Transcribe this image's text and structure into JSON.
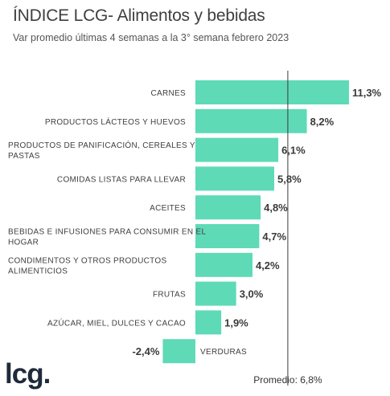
{
  "header": {
    "title": "ÍNDICE LCG- Alimentos y bebidas",
    "subtitle": "Var promedio últimas 4 semanas a la 3° semana febrero 2023"
  },
  "logo": {
    "text": "lcg."
  },
  "chart_data": {
    "type": "bar",
    "orientation": "horizontal",
    "categories": [
      "CARNES",
      "PRODUCTOS LÁCTEOS Y HUEVOS",
      "PRODUCTOS DE PANIFICACIÓN, CEREALES Y PASTAS",
      "COMIDAS LISTAS PARA LLEVAR",
      "ACEITES",
      "BEBIDAS E INFUSIONES PARA CONSUMIR EN EL HOGAR",
      "CONDIMENTOS Y OTROS PRODUCTOS ALIMENTICIOS",
      "FRUTAS",
      "AZÚCAR, MIEL, DULCES Y CACAO",
      "VERDURAS"
    ],
    "category_lines": [
      [
        "CARNES"
      ],
      [
        "PRODUCTOS LÁCTEOS Y HUEVOS"
      ],
      [
        "PRODUCTOS DE PANIFICACIÓN, CEREALES Y",
        "PASTAS"
      ],
      [
        "COMIDAS LISTAS PARA LLEVAR"
      ],
      [
        "ACEITES"
      ],
      [
        "BEBIDAS E INFUSIONES PARA CONSUMIR EN EL",
        "HOGAR"
      ],
      [
        "CONDIMENTOS Y OTROS PRODUCTOS",
        "ALIMENTICIOS"
      ],
      [
        "FRUTAS"
      ],
      [
        "AZÚCAR, MIEL, DULCES Y CACAO"
      ],
      [
        "VERDURAS"
      ]
    ],
    "values": [
      11.3,
      8.2,
      6.1,
      5.8,
      4.8,
      4.7,
      4.2,
      3.0,
      1.9,
      -2.4
    ],
    "value_labels": [
      "11,3%",
      "8,2%",
      "6,1%",
      "5,8%",
      "4,8%",
      "4,7%",
      "4,2%",
      "3,0%",
      "1,9%",
      "-2,4%"
    ],
    "average": {
      "value": 6.8,
      "label": "Promedio: 6,8%"
    },
    "bar_color": "#5edab7",
    "grid": false,
    "legend": "none"
  }
}
